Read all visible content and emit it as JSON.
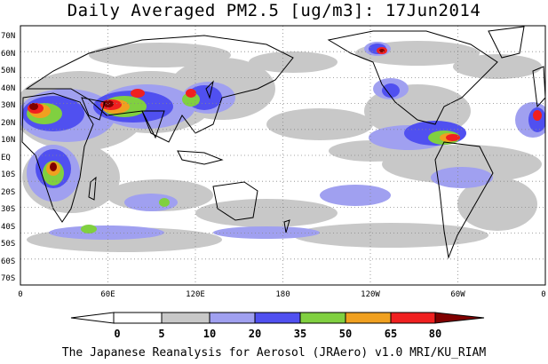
{
  "title": "Daily Averaged PM2.5 [ug/m3]: 17Jun2014",
  "credit": "The Japanese Reanalysis for Aerosol (JRAero) v1.0 MRI/KU_RIAM",
  "map": {
    "type": "filled-contour global map",
    "projection": "equirectangular, 0E centered at left edge",
    "lat_labels": [
      "70N",
      "60N",
      "50N",
      "40N",
      "30N",
      "20N",
      "10N",
      "EQ",
      "10S",
      "20S",
      "30S",
      "40S",
      "50S",
      "60S",
      "70S"
    ],
    "lon_labels": [
      "0",
      "60E",
      "120E",
      "180",
      "120W",
      "60W",
      "0"
    ],
    "grid": "dotted"
  },
  "colorbar": {
    "levels": [
      "0",
      "5",
      "10",
      "20",
      "35",
      "50",
      "65",
      "80"
    ],
    "colors": [
      "#ffffff",
      "#c8c8c8",
      "#a0a0f0",
      "#5050f0",
      "#80d040",
      "#f0a020",
      "#f02020",
      "#800000"
    ]
  }
}
